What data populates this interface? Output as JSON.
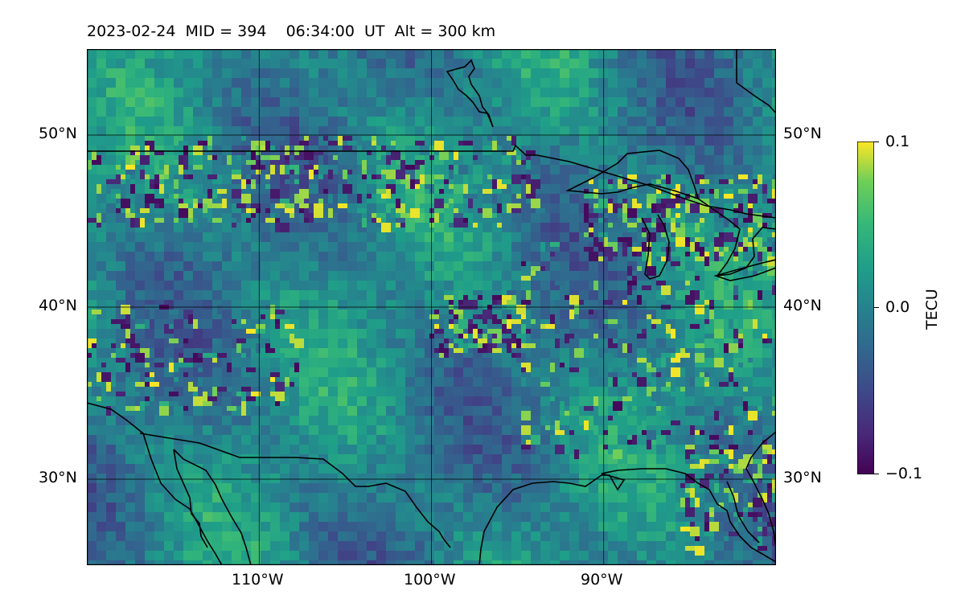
{
  "title": {
    "date": "2023-02-24",
    "mid": "MID = 394",
    "time": "06:34:00  UT",
    "alt": "Alt = 300 km"
  },
  "map": {
    "lon_range": [
      -120,
      -80
    ],
    "lat_range": [
      25,
      55
    ],
    "lat_ticks": [
      {
        "value": 30,
        "label": "30°N"
      },
      {
        "value": 40,
        "label": "40°N"
      },
      {
        "value": 50,
        "label": "50°N"
      }
    ],
    "lon_ticks": [
      {
        "value": -110,
        "label": "110°W"
      },
      {
        "value": -100,
        "label": "100°W"
      },
      {
        "value": -90,
        "label": "90°W"
      }
    ]
  },
  "colorbar": {
    "label": "TECU",
    "min_label": "−0.1",
    "zero_label": "0.0",
    "max_label": "0.1",
    "range": [
      -0.1,
      0.1
    ],
    "colormap": "viridis"
  },
  "colors": {
    "viridis_low": "#440154",
    "viridis_mid": "#21918c",
    "viridis_high": "#fde725",
    "coastline": "#000000",
    "grid": "#000000"
  }
}
